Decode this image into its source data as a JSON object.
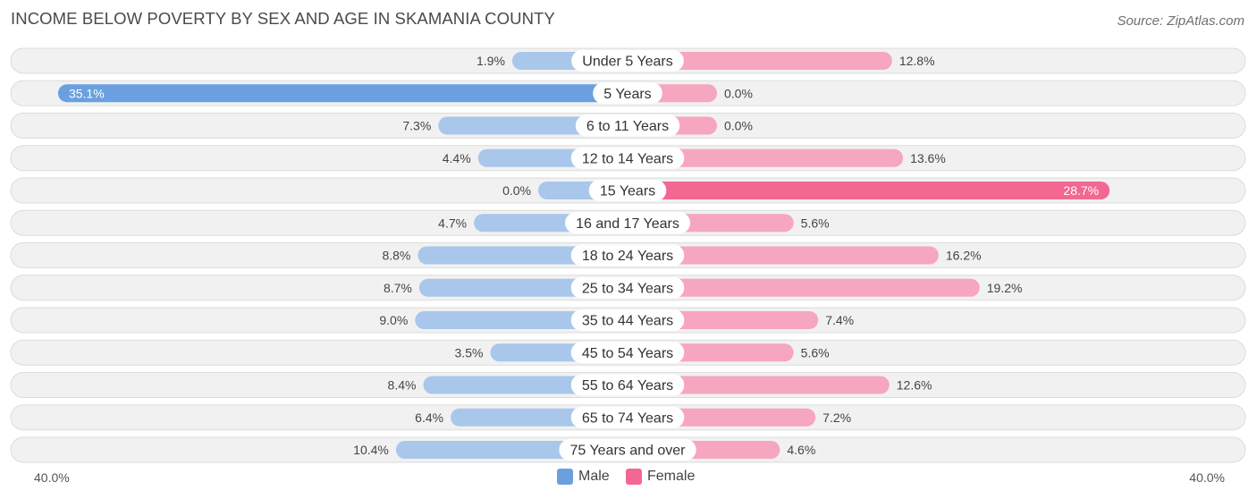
{
  "header": {
    "title": "INCOME BELOW POVERTY BY SEX AND AGE IN SKAMANIA COUNTY",
    "source": "Source: ZipAtlas.com"
  },
  "colors": {
    "male_strong": "#6aa0df",
    "male_light": "#a9c7eb",
    "female_strong": "#f26892",
    "female_light": "#f7a6bf",
    "row_bg": "#f1f1f1",
    "row_border": "#dcdcdc"
  },
  "chart_data": {
    "type": "bar",
    "orientation": "horizontal-diverging",
    "title": "INCOME BELOW POVERTY BY SEX AND AGE IN SKAMANIA COUNTY",
    "categories": [
      "Under 5 Years",
      "5 Years",
      "6 to 11 Years",
      "12 to 14 Years",
      "15 Years",
      "16 and 17 Years",
      "18 to 24 Years",
      "25 to 34 Years",
      "35 to 44 Years",
      "45 to 54 Years",
      "55 to 64 Years",
      "65 to 74 Years",
      "75 Years and over"
    ],
    "series": [
      {
        "name": "Male",
        "values": [
          1.9,
          35.1,
          7.3,
          4.4,
          0.0,
          4.7,
          8.8,
          8.7,
          9.0,
          3.5,
          8.4,
          6.4,
          10.4
        ],
        "labels": [
          "1.9%",
          "35.1%",
          "7.3%",
          "4.4%",
          "0.0%",
          "4.7%",
          "8.8%",
          "8.7%",
          "9.0%",
          "3.5%",
          "8.4%",
          "6.4%",
          "10.4%"
        ]
      },
      {
        "name": "Female",
        "values": [
          12.8,
          0.0,
          0.0,
          13.6,
          28.7,
          5.6,
          16.2,
          19.2,
          7.4,
          5.6,
          12.6,
          7.2,
          4.6
        ],
        "labels": [
          "12.8%",
          "0.0%",
          "0.0%",
          "13.6%",
          "28.7%",
          "5.6%",
          "16.2%",
          "19.2%",
          "7.4%",
          "5.6%",
          "12.6%",
          "7.2%",
          "4.6%"
        ]
      }
    ],
    "xlim": [
      -40,
      40
    ],
    "axis_labels": {
      "left": "40.0%",
      "right": "40.0%"
    },
    "legend": [
      {
        "name": "Male",
        "color": "#6aa0df"
      },
      {
        "name": "Female",
        "color": "#f26892"
      }
    ],
    "legend_position": "bottom-center"
  }
}
